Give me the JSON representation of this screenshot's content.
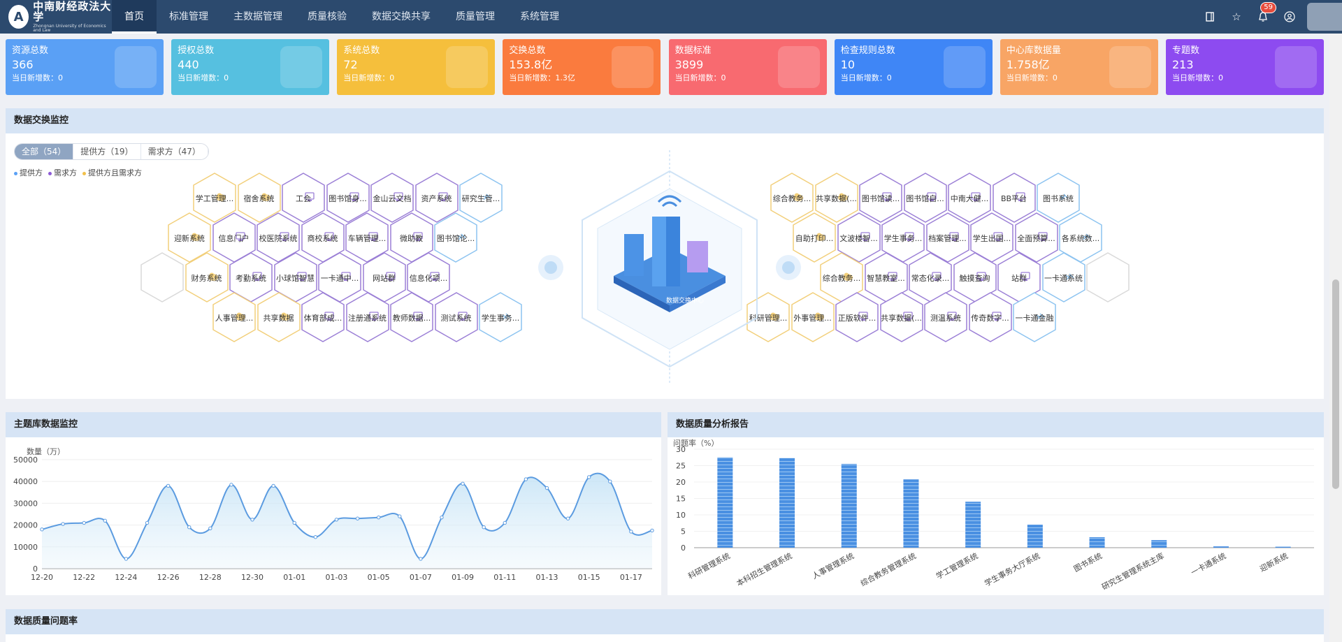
{
  "logo": {
    "cn": "中南财经政法大学",
    "en": "Zhongnan University of Economics and Law",
    "seal": "A"
  },
  "nav": [
    {
      "label": "首页",
      "active": true
    },
    {
      "label": "标准管理"
    },
    {
      "label": "主数据管理"
    },
    {
      "label": "质量核验"
    },
    {
      "label": "数据交换共享"
    },
    {
      "label": "质量管理"
    },
    {
      "label": "系统管理"
    }
  ],
  "header_icons": {
    "notifications": "59"
  },
  "stats": [
    {
      "title": "资源总数",
      "value": "366",
      "sub": "当日新增数：0",
      "color": "#5aa0f5"
    },
    {
      "title": "授权总数",
      "value": "440",
      "sub": "当日新增数：0",
      "color": "#56c0e0"
    },
    {
      "title": "系统总数",
      "value": "72",
      "sub": "当日新增数：0",
      "color": "#f5bf3c"
    },
    {
      "title": "交换总数",
      "value": "153.8亿",
      "sub": "当日新增数：1.3亿",
      "color": "#fa7b3e"
    },
    {
      "title": "数据标准",
      "value": "3899",
      "sub": "当日新增数：0",
      "color": "#f86a70"
    },
    {
      "title": "检查规则总数",
      "value": "10",
      "sub": "当日新增数：0",
      "color": "#3f86f6"
    },
    {
      "title": "中心库数据量",
      "value": "1.758亿",
      "sub": "当日新增数：0",
      "color": "#f8a565"
    },
    {
      "title": "专题数",
      "value": "213",
      "sub": "当日新增数：0",
      "color": "#8d4bf0"
    }
  ],
  "exchange": {
    "title": "数据交换监控",
    "tabs": [
      "全部（54）",
      "提供方（19）",
      "需求方（47）"
    ],
    "legend": [
      {
        "label": "提供方",
        "color": "#5aa0f5"
      },
      {
        "label": "需求方",
        "color": "#8d5bd6"
      },
      {
        "label": "提供方且需求方",
        "color": "#f2c04a"
      }
    ],
    "colors": {
      "both": "#f2cf7a",
      "demand": "#9b7fd6",
      "provider": "#8cc3f0"
    },
    "left_rows": [
      [
        [
          "学工管理...",
          "both"
        ],
        [
          "宿舍系统",
          "both"
        ],
        [
          "工会",
          "demand"
        ],
        [
          "图书馆身...",
          "demand"
        ],
        [
          "金山云文档",
          "demand"
        ],
        [
          "资产系统",
          "demand"
        ],
        [
          "研究生管...",
          "provider"
        ]
      ],
      [
        [
          "迎新系统",
          "both"
        ],
        [
          "信息门户",
          "demand"
        ],
        [
          "校医院系统",
          "demand"
        ],
        [
          "商校系统",
          "demand"
        ],
        [
          "车辆管理...",
          "demand"
        ],
        [
          "微助教",
          "demand"
        ],
        [
          "图书馆论...",
          "provider"
        ]
      ],
      [
        [
          "",
          "empty"
        ],
        [
          "财务系统",
          "both"
        ],
        [
          "考勤系统",
          "demand"
        ],
        [
          "小球馆智慧",
          "demand"
        ],
        [
          "一卡通中...",
          "demand"
        ],
        [
          "网站群",
          "demand"
        ],
        [
          "信息化项...",
          "demand"
        ]
      ],
      [
        [
          "人事管理...",
          "both"
        ],
        [
          "共享数据",
          "both"
        ],
        [
          "体育部成...",
          "demand"
        ],
        [
          "注册通系统",
          "demand"
        ],
        [
          "教师数据...",
          "demand"
        ],
        [
          "测试系统",
          "demand"
        ],
        [
          "学生事务...",
          "provider"
        ]
      ]
    ],
    "right_rows": [
      [
        [
          "综合教务...",
          "both"
        ],
        [
          "共享数据(...",
          "both"
        ],
        [
          "图书馆读...",
          "demand"
        ],
        [
          "图书馆自...",
          "demand"
        ],
        [
          "中南大健...",
          "demand"
        ],
        [
          "BB平台",
          "demand"
        ],
        [
          "图书系统",
          "provider"
        ]
      ],
      [
        [
          "自助打印...",
          "both"
        ],
        [
          "文波楼智...",
          "demand"
        ],
        [
          "学生事务...",
          "demand"
        ],
        [
          "档案管理...",
          "demand"
        ],
        [
          "学生出国...",
          "demand"
        ],
        [
          "全面预算...",
          "demand"
        ],
        [
          "各系统数...",
          "provider"
        ]
      ],
      [
        [
          "综合教务...",
          "both"
        ],
        [
          "智慧教室...",
          "demand"
        ],
        [
          "常态化录...",
          "demand"
        ],
        [
          "触摸查询",
          "demand"
        ],
        [
          "站群",
          "demand"
        ],
        [
          "一卡通系统",
          "provider"
        ],
        [
          "",
          "empty"
        ]
      ],
      [
        [
          "科研管理...",
          "both"
        ],
        [
          "外事管理...",
          "both"
        ],
        [
          "正版软件...",
          "demand"
        ],
        [
          "共享数据(...",
          "demand"
        ],
        [
          "测温系统",
          "demand"
        ],
        [
          "传奇数字...",
          "demand"
        ],
        [
          "一卡通金融",
          "provider"
        ]
      ]
    ],
    "hub_label": "数据交换中心"
  },
  "topic_monitor": {
    "title": "主题库数据监控"
  },
  "quality_report": {
    "title": "数据质量分析报告"
  },
  "quality_rate": {
    "title": "数据质量问题率"
  },
  "chart_data": [
    {
      "type": "line",
      "ylabel": "数量（万）",
      "ylim": [
        0,
        50000
      ],
      "yticks": [
        0,
        10000,
        20000,
        30000,
        40000,
        50000
      ],
      "x": [
        "12-20",
        "12-21",
        "12-22",
        "12-23",
        "12-24",
        "12-25",
        "12-26",
        "12-27",
        "12-28",
        "12-29",
        "12-30",
        "12-31",
        "01-01",
        "01-02",
        "01-03",
        "01-04",
        "01-05",
        "01-06",
        "01-07",
        "01-08",
        "01-09",
        "01-10",
        "01-11",
        "01-12",
        "01-13",
        "01-14",
        "01-15",
        "01-16",
        "01-17",
        "01-18"
      ],
      "xtick_labels": [
        "12-20",
        "12-22",
        "12-24",
        "12-26",
        "12-28",
        "12-30",
        "01-01",
        "01-03",
        "01-05",
        "01-07",
        "01-09",
        "01-11",
        "01-13",
        "01-15",
        "01-17"
      ],
      "values": [
        18000,
        20500,
        21000,
        22000,
        4500,
        21000,
        38000,
        19000,
        18500,
        38500,
        22500,
        38000,
        21000,
        14500,
        22500,
        23000,
        23500,
        24000,
        4500,
        23500,
        39000,
        19000,
        21000,
        41000,
        37000,
        23000,
        42000,
        40000,
        17000,
        17500
      ],
      "color": "#5b9be0"
    },
    {
      "type": "bar",
      "ylabel": "问题率（%）",
      "ylim": [
        0,
        30
      ],
      "yticks": [
        0,
        5,
        10,
        15,
        20,
        25,
        30
      ],
      "categories": [
        "科研管理系统",
        "本科招生管理系统",
        "人事管理系统",
        "综合教务管理系统",
        "学工管理系统",
        "学生事务大厅系统",
        "图书系统",
        "研究生管理系统主库",
        "一卡通系统",
        "迎新系统"
      ],
      "values": [
        27.5,
        27.3,
        25.5,
        20.8,
        14.0,
        7.0,
        3.2,
        2.3,
        0.4,
        0.3
      ],
      "color": "#4a90e2"
    }
  ]
}
